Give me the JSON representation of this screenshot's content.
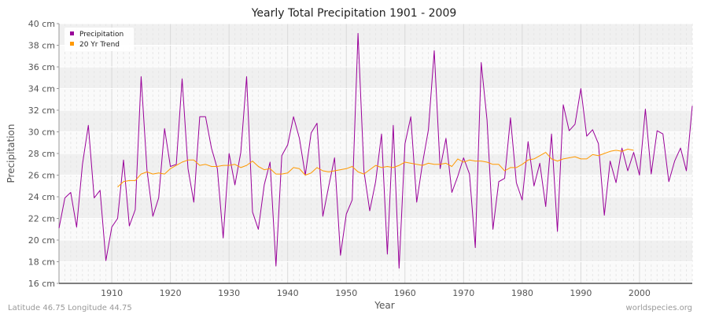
{
  "chart_data": {
    "type": "line",
    "title": "Yearly Total Precipitation 1901 - 2009",
    "xlabel": "Year",
    "ylabel": "Precipitation",
    "xlim": [
      1901,
      2009
    ],
    "ylim": [
      16,
      40
    ],
    "x_ticks": [
      1910,
      1920,
      1930,
      1940,
      1950,
      1960,
      1970,
      1980,
      1990,
      2000
    ],
    "y_ticks": [
      16,
      18,
      20,
      22,
      24,
      26,
      28,
      30,
      32,
      34,
      36,
      38,
      40
    ],
    "y_tick_labels": [
      "16 cm",
      "18 cm",
      "20 cm",
      "22 cm",
      "24 cm",
      "26 cm",
      "28 cm",
      "30 cm",
      "32 cm",
      "34 cm",
      "36 cm",
      "38 cm",
      "40 cm"
    ],
    "grid": true,
    "legend_position": "top-left",
    "series": [
      {
        "name": "Precipitation",
        "color": "#990099",
        "x": [
          1901,
          1902,
          1903,
          1904,
          1905,
          1906,
          1907,
          1908,
          1909,
          1910,
          1911,
          1912,
          1913,
          1914,
          1915,
          1916,
          1917,
          1918,
          1919,
          1920,
          1921,
          1922,
          1923,
          1924,
          1925,
          1926,
          1927,
          1928,
          1929,
          1930,
          1931,
          1932,
          1933,
          1934,
          1935,
          1936,
          1937,
          1938,
          1939,
          1940,
          1941,
          1942,
          1943,
          1944,
          1945,
          1946,
          1947,
          1948,
          1949,
          1950,
          1951,
          1952,
          1953,
          1954,
          1955,
          1956,
          1957,
          1958,
          1959,
          1960,
          1961,
          1962,
          1963,
          1964,
          1965,
          1966,
          1967,
          1968,
          1969,
          1970,
          1971,
          1972,
          1973,
          1974,
          1975,
          1976,
          1977,
          1978,
          1979,
          1980,
          1981,
          1982,
          1983,
          1984,
          1985,
          1986,
          1987,
          1988,
          1989,
          1990,
          1991,
          1992,
          1993,
          1994,
          1995,
          1996,
          1997,
          1998,
          1999,
          2000,
          2001,
          2002,
          2003,
          2004,
          2005,
          2006,
          2007,
          2008,
          2009
        ],
        "values": [
          21.1,
          23.9,
          24.4,
          21.2,
          27.0,
          30.6,
          23.9,
          24.6,
          18.1,
          21.2,
          22.0,
          27.4,
          21.3,
          22.8,
          35.1,
          26.5,
          22.2,
          23.9,
          30.3,
          26.8,
          27.0,
          34.9,
          26.6,
          23.5,
          31.4,
          31.4,
          28.5,
          26.6,
          20.2,
          28.0,
          25.1,
          28.1,
          35.1,
          22.6,
          21.0,
          25.1,
          27.2,
          17.6,
          27.8,
          28.8,
          31.4,
          29.4,
          26.0,
          29.9,
          30.8,
          22.2,
          25.0,
          27.6,
          18.6,
          22.4,
          23.7,
          39.1,
          26.4,
          22.7,
          25.4,
          29.8,
          18.7,
          30.6,
          17.4,
          28.9,
          31.4,
          23.5,
          27.1,
          30.2,
          37.5,
          26.6,
          29.4,
          24.4,
          25.9,
          27.6,
          26.1,
          19.3,
          36.4,
          31.1,
          21.0,
          25.4,
          25.7,
          31.3,
          25.3,
          23.7,
          29.1,
          25.0,
          27.1,
          23.1,
          29.8,
          20.8,
          32.5,
          30.1,
          30.7,
          34.0,
          29.6,
          30.2,
          28.9,
          22.3,
          27.3,
          25.3,
          28.5,
          26.4,
          28.1,
          26.0,
          32.1,
          26.1,
          30.1,
          29.8,
          25.4,
          27.3,
          28.5,
          26.4,
          32.4
        ]
      },
      {
        "name": "20 Yr Trend",
        "color": "#ff9900",
        "x": [
          1911,
          1912,
          1913,
          1914,
          1915,
          1916,
          1917,
          1918,
          1919,
          1920,
          1921,
          1922,
          1923,
          1924,
          1925,
          1926,
          1927,
          1928,
          1929,
          1930,
          1931,
          1932,
          1933,
          1934,
          1935,
          1936,
          1937,
          1938,
          1939,
          1940,
          1941,
          1942,
          1943,
          1944,
          1945,
          1946,
          1947,
          1948,
          1949,
          1950,
          1951,
          1952,
          1953,
          1954,
          1955,
          1956,
          1957,
          1958,
          1959,
          1960,
          1961,
          1962,
          1963,
          1964,
          1965,
          1966,
          1967,
          1968,
          1969,
          1970,
          1971,
          1972,
          1973,
          1974,
          1975,
          1976,
          1977,
          1978,
          1979,
          1980,
          1981,
          1982,
          1983,
          1984,
          1985,
          1986,
          1987,
          1988,
          1989,
          1990,
          1991,
          1992,
          1993,
          1994,
          1995,
          1996,
          1997,
          1998,
          1999
        ],
        "values": [
          24.9,
          25.4,
          25.5,
          25.5,
          26.1,
          26.3,
          26.1,
          26.2,
          26.1,
          26.6,
          26.9,
          27.2,
          27.4,
          27.4,
          26.9,
          27.0,
          26.8,
          26.8,
          26.9,
          26.9,
          27.0,
          26.7,
          26.9,
          27.3,
          26.8,
          26.5,
          26.6,
          26.1,
          26.1,
          26.2,
          26.7,
          26.6,
          26.0,
          26.2,
          26.7,
          26.4,
          26.3,
          26.4,
          26.5,
          26.6,
          26.8,
          26.3,
          26.1,
          26.5,
          26.9,
          26.7,
          26.8,
          26.7,
          26.9,
          27.2,
          27.1,
          27.0,
          26.9,
          27.1,
          27.0,
          27.0,
          27.1,
          26.8,
          27.5,
          27.2,
          27.4,
          27.3,
          27.3,
          27.2,
          27.0,
          27.0,
          26.4,
          26.7,
          26.7,
          27.0,
          27.4,
          27.5,
          27.8,
          28.1,
          27.5,
          27.3,
          27.5,
          27.6,
          27.7,
          27.5,
          27.5,
          27.9,
          27.8,
          28.0,
          28.2,
          28.3,
          28.2,
          28.4,
          28.3
        ]
      }
    ]
  },
  "footer": {
    "coordinates": "Latitude 46.75 Longitude 44.75",
    "source": "worldspecies.org"
  }
}
